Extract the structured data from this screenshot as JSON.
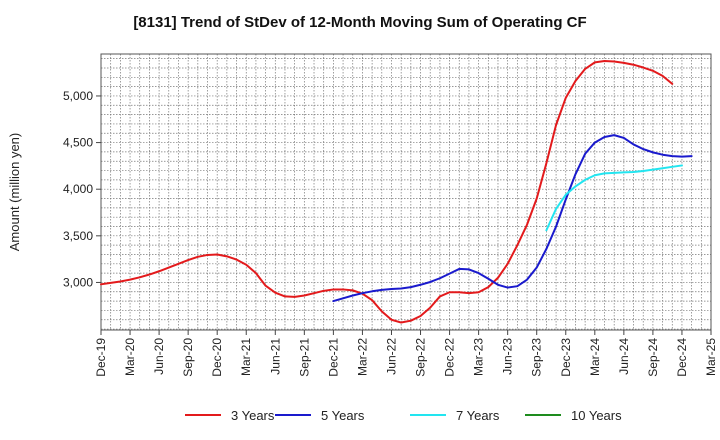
{
  "chart_data": {
    "type": "line",
    "title": "[8131]  Trend of StDev of 12-Month Moving Sum of Operating CF",
    "xlabel": "",
    "ylabel": "Amount (million yen)",
    "x_ticks": [
      "Dec-19",
      "Mar-20",
      "Jun-20",
      "Sep-20",
      "Dec-20",
      "Mar-21",
      "Jun-21",
      "Sep-21",
      "Dec-21",
      "Mar-22",
      "Jun-22",
      "Sep-22",
      "Dec-22",
      "Mar-23",
      "Jun-23",
      "Sep-23",
      "Dec-23",
      "Mar-24",
      "Jun-24",
      "Sep-24",
      "Dec-24",
      "Mar-25"
    ],
    "y_ticks": [
      3000,
      3500,
      4000,
      4500,
      5000
    ],
    "y_tick_labels": [
      "3,000",
      "3,500",
      "4,000",
      "4,500",
      "5,000"
    ],
    "ylim": [
      2490,
      5450
    ],
    "grid": true,
    "legend_position": "bottom",
    "series": [
      {
        "name": "3 Years",
        "color": "#e31a1c",
        "points": [
          [
            "2019-12",
            2980
          ],
          [
            "2020-01",
            2995
          ],
          [
            "2020-02",
            3010
          ],
          [
            "2020-03",
            3030
          ],
          [
            "2020-04",
            3055
          ],
          [
            "2020-05",
            3085
          ],
          [
            "2020-06",
            3120
          ],
          [
            "2020-07",
            3160
          ],
          [
            "2020-08",
            3200
          ],
          [
            "2020-09",
            3240
          ],
          [
            "2020-10",
            3275
          ],
          [
            "2020-11",
            3295
          ],
          [
            "2020-12",
            3300
          ],
          [
            "2021-01",
            3280
          ],
          [
            "2021-02",
            3245
          ],
          [
            "2021-03",
            3190
          ],
          [
            "2021-04",
            3100
          ],
          [
            "2021-05",
            2965
          ],
          [
            "2021-06",
            2890
          ],
          [
            "2021-07",
            2850
          ],
          [
            "2021-08",
            2845
          ],
          [
            "2021-09",
            2860
          ],
          [
            "2021-10",
            2885
          ],
          [
            "2021-11",
            2910
          ],
          [
            "2021-12",
            2925
          ],
          [
            "2022-01",
            2925
          ],
          [
            "2022-02",
            2915
          ],
          [
            "2022-03",
            2880
          ],
          [
            "2022-04",
            2810
          ],
          [
            "2022-05",
            2690
          ],
          [
            "2022-06",
            2600
          ],
          [
            "2022-07",
            2570
          ],
          [
            "2022-08",
            2590
          ],
          [
            "2022-09",
            2640
          ],
          [
            "2022-10",
            2730
          ],
          [
            "2022-11",
            2850
          ],
          [
            "2022-12",
            2895
          ],
          [
            "2023-01",
            2895
          ],
          [
            "2023-02",
            2885
          ],
          [
            "2023-03",
            2895
          ],
          [
            "2023-04",
            2950
          ],
          [
            "2023-05",
            3050
          ],
          [
            "2023-06",
            3200
          ],
          [
            "2023-07",
            3400
          ],
          [
            "2023-08",
            3620
          ],
          [
            "2023-09",
            3900
          ],
          [
            "2023-10",
            4280
          ],
          [
            "2023-11",
            4690
          ],
          [
            "2023-12",
            4980
          ],
          [
            "2024-01",
            5160
          ],
          [
            "2024-02",
            5290
          ],
          [
            "2024-03",
            5360
          ],
          [
            "2024-04",
            5375
          ],
          [
            "2024-05",
            5370
          ],
          [
            "2024-06",
            5355
          ],
          [
            "2024-07",
            5335
          ],
          [
            "2024-08",
            5305
          ],
          [
            "2024-09",
            5270
          ],
          [
            "2024-10",
            5215
          ],
          [
            "2024-11",
            5130
          ]
        ]
      },
      {
        "name": "5 Years",
        "color": "#1a1acd",
        "points": [
          [
            "2021-12",
            2800
          ],
          [
            "2022-01",
            2830
          ],
          [
            "2022-02",
            2860
          ],
          [
            "2022-03",
            2885
          ],
          [
            "2022-04",
            2905
          ],
          [
            "2022-05",
            2920
          ],
          [
            "2022-06",
            2930
          ],
          [
            "2022-07",
            2935
          ],
          [
            "2022-08",
            2950
          ],
          [
            "2022-09",
            2975
          ],
          [
            "2022-10",
            3005
          ],
          [
            "2022-11",
            3045
          ],
          [
            "2022-12",
            3095
          ],
          [
            "2023-01",
            3145
          ],
          [
            "2023-02",
            3140
          ],
          [
            "2023-03",
            3100
          ],
          [
            "2023-04",
            3040
          ],
          [
            "2023-05",
            2975
          ],
          [
            "2023-06",
            2945
          ],
          [
            "2023-07",
            2960
          ],
          [
            "2023-08",
            3030
          ],
          [
            "2023-09",
            3160
          ],
          [
            "2023-10",
            3360
          ],
          [
            "2023-11",
            3600
          ],
          [
            "2023-12",
            3890
          ],
          [
            "2024-01",
            4160
          ],
          [
            "2024-02",
            4380
          ],
          [
            "2024-03",
            4500
          ],
          [
            "2024-04",
            4560
          ],
          [
            "2024-05",
            4580
          ],
          [
            "2024-06",
            4550
          ],
          [
            "2024-07",
            4480
          ],
          [
            "2024-08",
            4430
          ],
          [
            "2024-09",
            4395
          ],
          [
            "2024-10",
            4370
          ],
          [
            "2024-11",
            4355
          ],
          [
            "2024-12",
            4350
          ],
          [
            "2025-01",
            4355
          ]
        ]
      },
      {
        "name": "7 Years",
        "color": "#22e5f0",
        "points": [
          [
            "2023-10",
            3560
          ],
          [
            "2023-11",
            3790
          ],
          [
            "2023-12",
            3940
          ],
          [
            "2024-01",
            4030
          ],
          [
            "2024-02",
            4100
          ],
          [
            "2024-03",
            4150
          ],
          [
            "2024-04",
            4170
          ],
          [
            "2024-05",
            4175
          ],
          [
            "2024-06",
            4180
          ],
          [
            "2024-07",
            4185
          ],
          [
            "2024-08",
            4195
          ],
          [
            "2024-09",
            4210
          ],
          [
            "2024-10",
            4225
          ],
          [
            "2024-11",
            4240
          ],
          [
            "2024-12",
            4255
          ]
        ]
      },
      {
        "name": "10 Years",
        "color": "#1e8c1e",
        "points": []
      }
    ]
  }
}
